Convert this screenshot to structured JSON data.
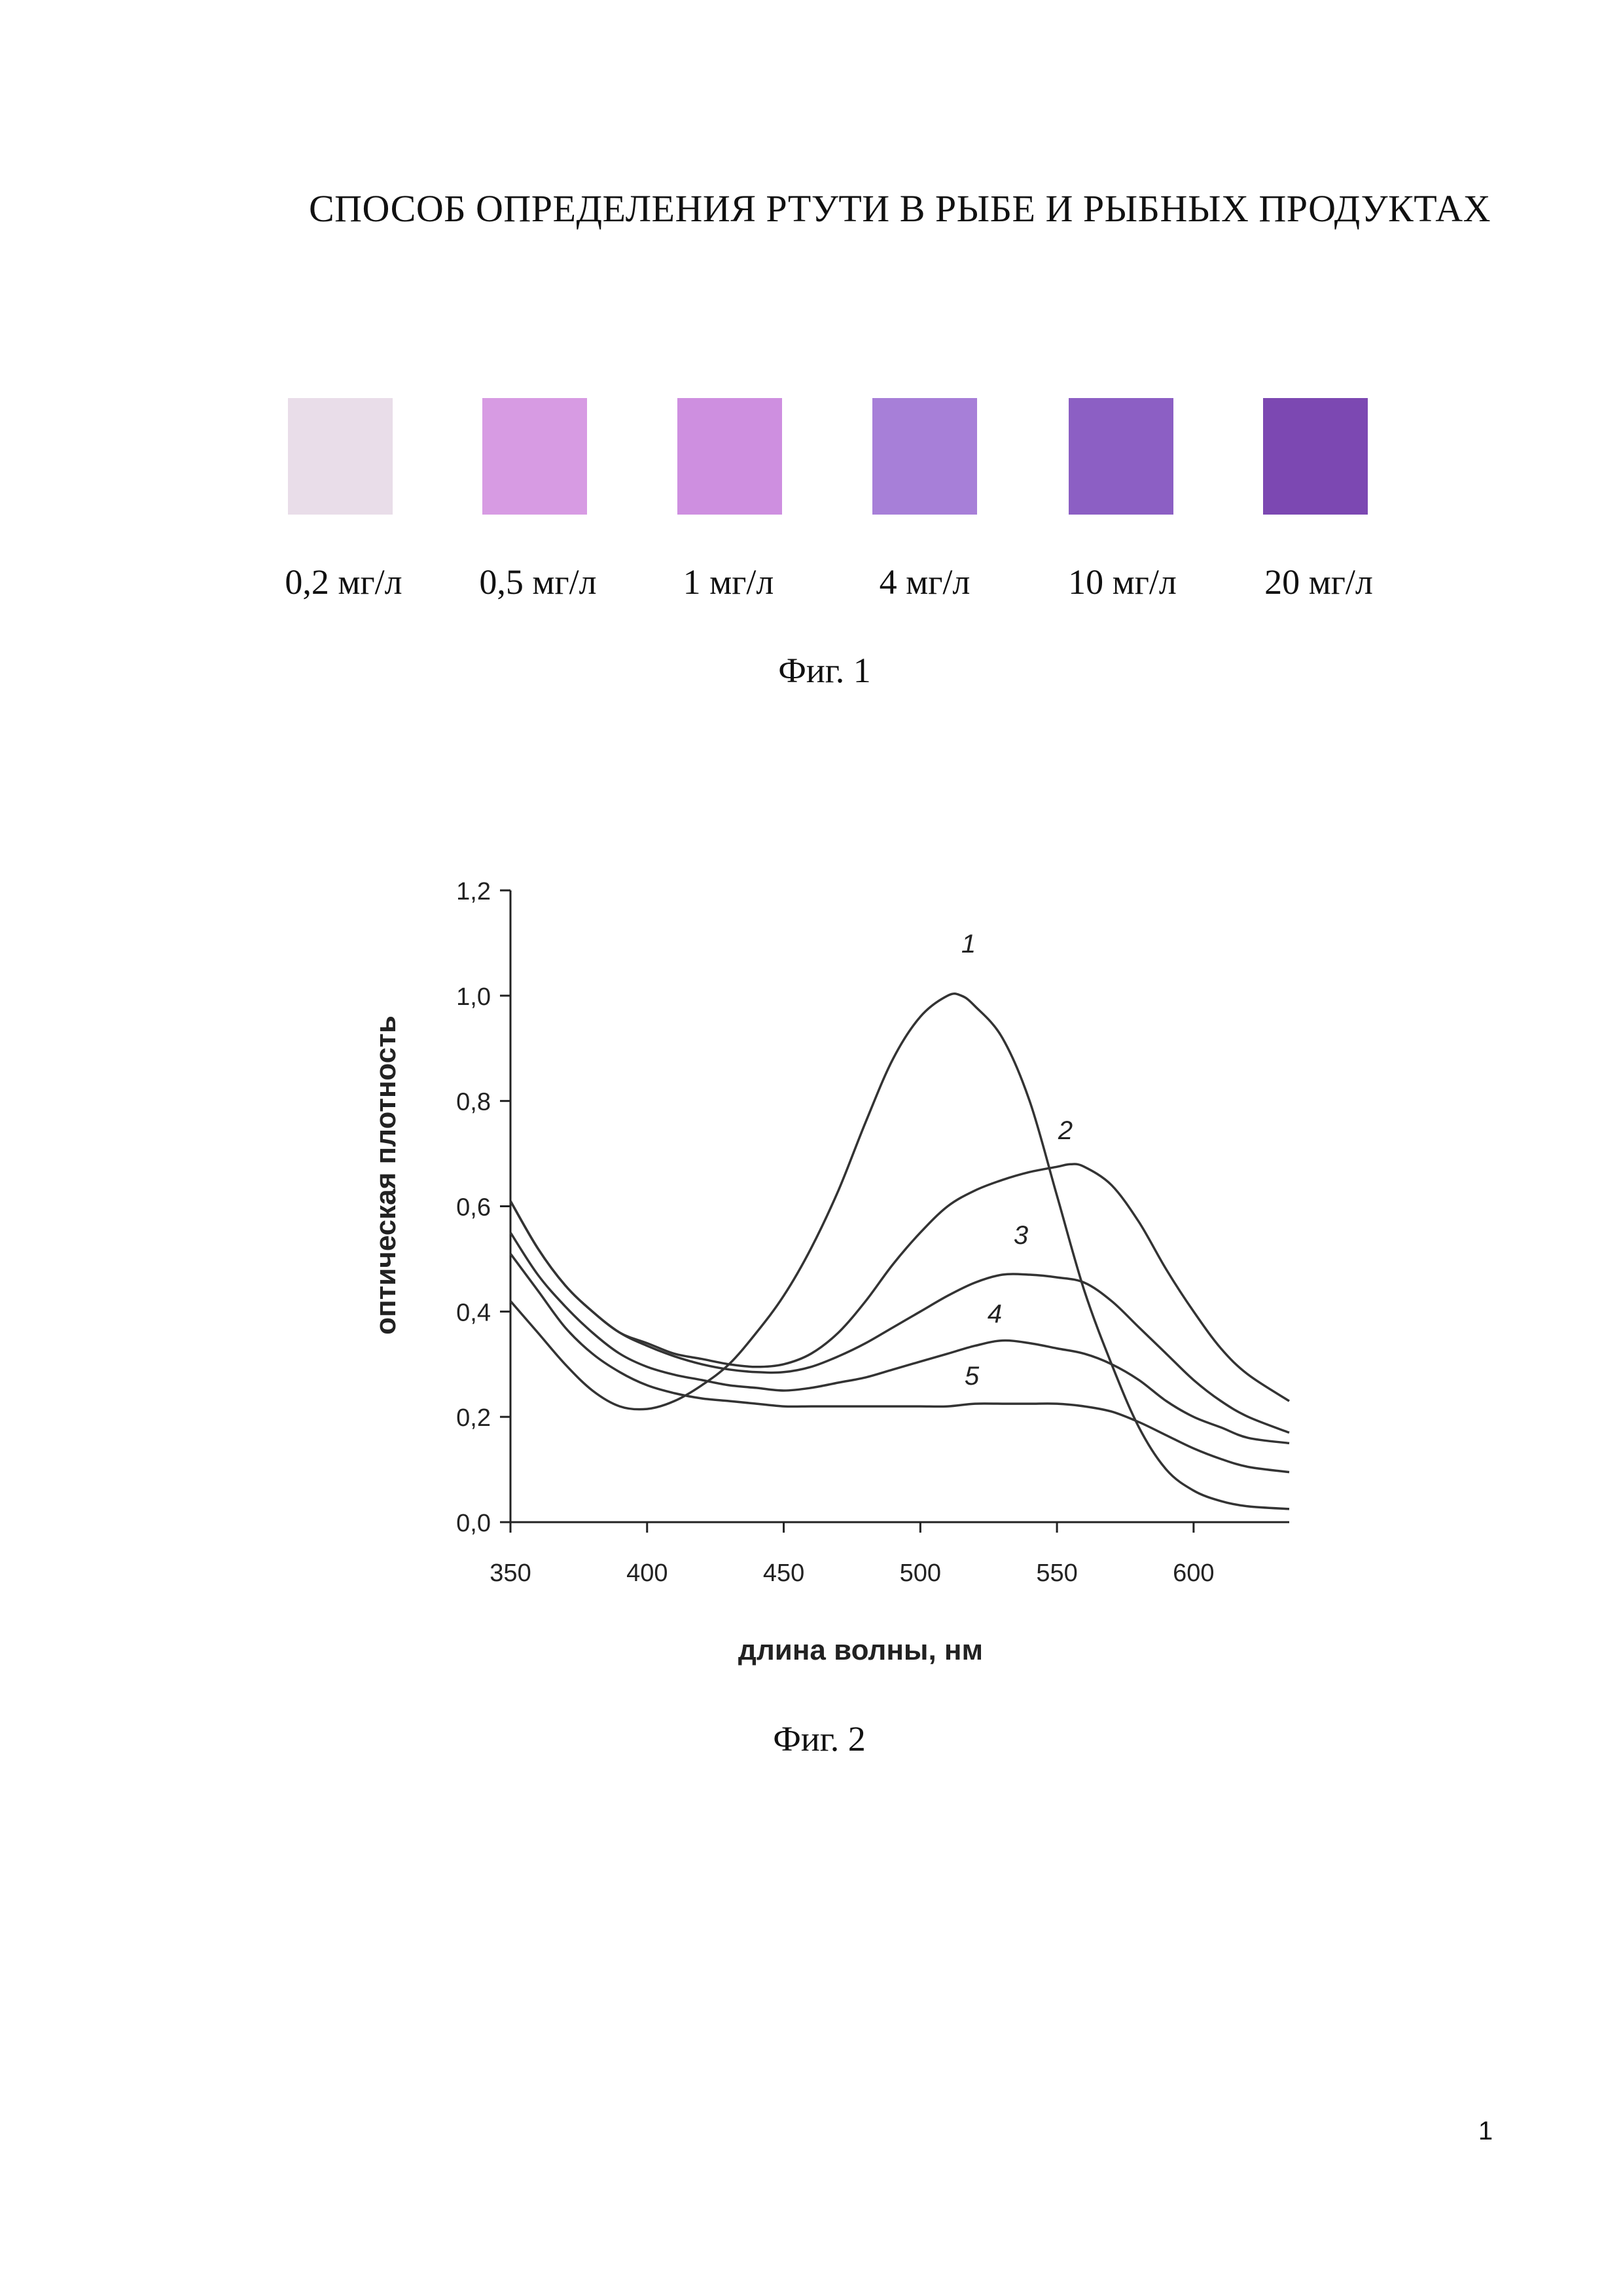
{
  "document": {
    "title": "СПОСОБ ОПРЕДЕЛЕНИЯ РТУТИ В РЫБЕ И РЫБНЫХ ПРОДУКТАХ",
    "page_number": "1"
  },
  "figure1": {
    "caption": "Фиг. 1",
    "swatches": [
      {
        "label": "0,2 мг/л",
        "color": "#e9dde9"
      },
      {
        "label": "0,5 мг/л",
        "color": "#d79be3"
      },
      {
        "label": "1 мг/л",
        "color": "#ce8fe0"
      },
      {
        "label": "4 мг/л",
        "color": "#a77fd8"
      },
      {
        "label": "10 мг/л",
        "color": "#8c5fc4"
      },
      {
        "label": "20 мг/л",
        "color": "#7c48b2"
      }
    ]
  },
  "figure2": {
    "caption": "Фиг. 2"
  },
  "chart_data": {
    "type": "line",
    "title": "",
    "xlabel": "длина волны, нм",
    "ylabel": "оптическая плотность",
    "xlim": [
      350,
      635
    ],
    "ylim": [
      0,
      1.2
    ],
    "x_ticks": [
      "350",
      "400",
      "450",
      "500",
      "550",
      "600"
    ],
    "y_ticks": [
      "0,0",
      "0,2",
      "0,4",
      "0,6",
      "0,8",
      "1,0",
      "1,2"
    ],
    "grid": false,
    "legend": "none",
    "line_color": "#333333",
    "series": [
      {
        "name": "1",
        "x": [
          350,
          360,
          370,
          380,
          390,
          400,
          410,
          420,
          430,
          440,
          450,
          460,
          470,
          480,
          490,
          500,
          510,
          515,
          520,
          530,
          540,
          550,
          560,
          570,
          580,
          590,
          600,
          610,
          620,
          635
        ],
        "y": [
          0.42,
          0.36,
          0.3,
          0.25,
          0.22,
          0.215,
          0.23,
          0.26,
          0.3,
          0.36,
          0.43,
          0.52,
          0.63,
          0.76,
          0.88,
          0.96,
          1.0,
          1.0,
          0.98,
          0.92,
          0.8,
          0.62,
          0.44,
          0.3,
          0.18,
          0.1,
          0.06,
          0.04,
          0.03,
          0.025
        ]
      },
      {
        "name": "2",
        "x": [
          350,
          360,
          370,
          380,
          390,
          400,
          410,
          420,
          430,
          440,
          450,
          460,
          470,
          480,
          490,
          500,
          510,
          520,
          530,
          540,
          550,
          555,
          560,
          570,
          580,
          590,
          600,
          610,
          620,
          635
        ],
        "y": [
          0.61,
          0.52,
          0.45,
          0.4,
          0.36,
          0.34,
          0.32,
          0.31,
          0.3,
          0.295,
          0.3,
          0.32,
          0.36,
          0.42,
          0.49,
          0.55,
          0.6,
          0.63,
          0.65,
          0.665,
          0.675,
          0.68,
          0.675,
          0.64,
          0.57,
          0.48,
          0.4,
          0.33,
          0.28,
          0.23
        ]
      },
      {
        "name": "3",
        "x": [
          350,
          360,
          370,
          380,
          390,
          400,
          410,
          420,
          430,
          440,
          450,
          460,
          470,
          480,
          490,
          500,
          510,
          520,
          530,
          540,
          550,
          560,
          570,
          580,
          590,
          600,
          610,
          620,
          635
        ],
        "y": [
          0.61,
          0.52,
          0.45,
          0.4,
          0.36,
          0.335,
          0.315,
          0.3,
          0.29,
          0.285,
          0.285,
          0.295,
          0.315,
          0.34,
          0.37,
          0.4,
          0.43,
          0.455,
          0.47,
          0.47,
          0.465,
          0.455,
          0.42,
          0.37,
          0.32,
          0.27,
          0.23,
          0.2,
          0.17
        ]
      },
      {
        "name": "4",
        "x": [
          350,
          360,
          370,
          380,
          390,
          400,
          410,
          420,
          430,
          440,
          450,
          460,
          470,
          480,
          490,
          500,
          510,
          520,
          530,
          540,
          550,
          560,
          570,
          580,
          590,
          600,
          610,
          620,
          635
        ],
        "y": [
          0.55,
          0.47,
          0.41,
          0.36,
          0.32,
          0.295,
          0.28,
          0.27,
          0.26,
          0.255,
          0.25,
          0.255,
          0.265,
          0.275,
          0.29,
          0.305,
          0.32,
          0.335,
          0.345,
          0.34,
          0.33,
          0.32,
          0.3,
          0.27,
          0.23,
          0.2,
          0.18,
          0.16,
          0.15
        ]
      },
      {
        "name": "5",
        "x": [
          350,
          360,
          370,
          380,
          390,
          400,
          410,
          420,
          430,
          440,
          450,
          460,
          470,
          480,
          490,
          500,
          510,
          520,
          530,
          540,
          550,
          560,
          570,
          580,
          590,
          600,
          610,
          620,
          635
        ],
        "y": [
          0.51,
          0.44,
          0.37,
          0.32,
          0.285,
          0.26,
          0.245,
          0.235,
          0.23,
          0.225,
          0.22,
          0.22,
          0.22,
          0.22,
          0.22,
          0.22,
          0.22,
          0.225,
          0.225,
          0.225,
          0.225,
          0.22,
          0.21,
          0.19,
          0.165,
          0.14,
          0.12,
          0.105,
          0.095
        ]
      }
    ]
  }
}
